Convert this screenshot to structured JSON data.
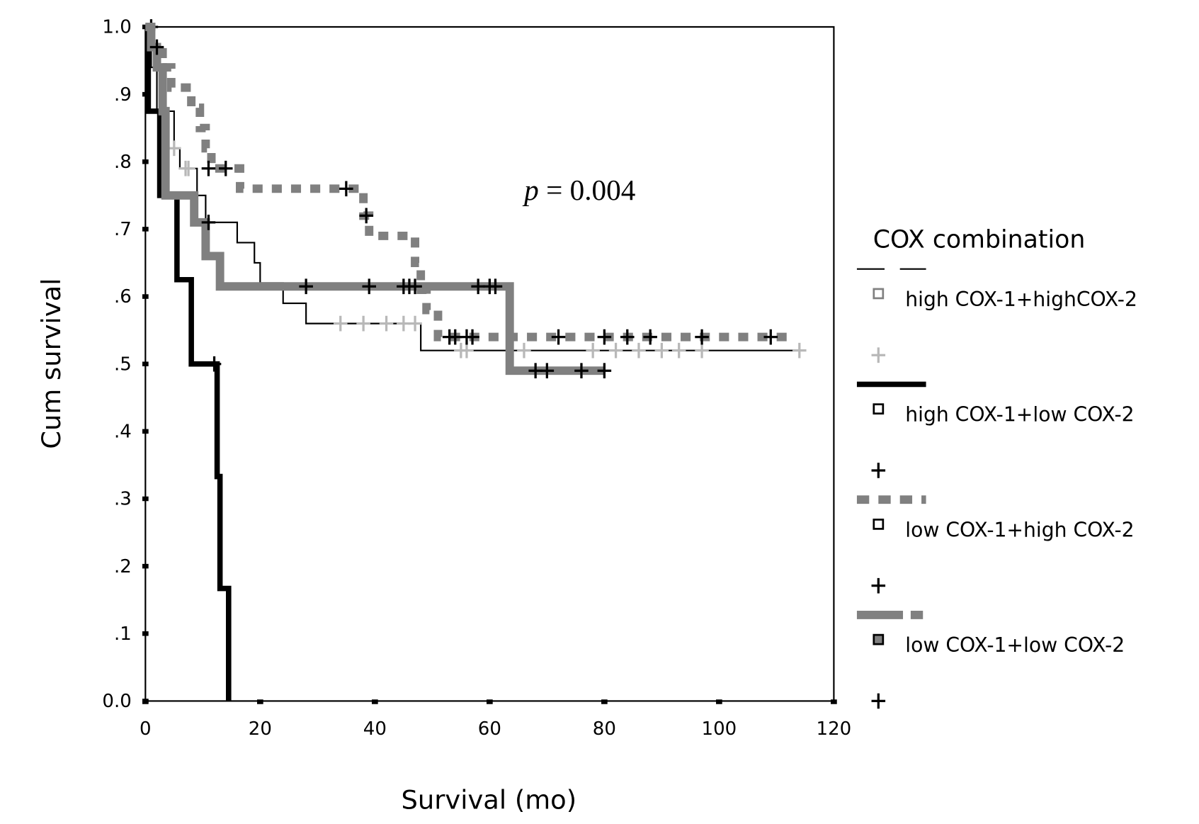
{
  "chart_data": {
    "type": "line",
    "subtype": "kaplan-meier",
    "xlabel": "Survival (mo)",
    "ylabel": "Cum survival",
    "xlim": [
      0,
      120
    ],
    "ylim": [
      0,
      1
    ],
    "x_ticks": [
      0,
      20,
      40,
      60,
      80,
      100,
      120
    ],
    "x_tick_labels": [
      "0",
      "20",
      "40",
      "60",
      "80",
      "100",
      "120"
    ],
    "y_ticks": [
      0,
      0.1,
      0.2,
      0.3,
      0.4,
      0.5,
      0.6,
      0.7,
      0.8,
      0.9,
      1.0
    ],
    "y_tick_labels": [
      "0.0",
      ".1",
      ".2",
      ".3",
      ".4",
      ".5",
      ".6",
      ".7",
      ".8",
      ".9",
      "1.0"
    ],
    "grid": false,
    "legend_title": "COX combination",
    "legend_position": "right",
    "annotation": {
      "italic": "p",
      "text": " = 0.004"
    },
    "series": [
      {
        "name": "high COX-1+highCOX-2",
        "color": "#000000",
        "censor_color": "#b8b8b8",
        "style": "thin-dashed",
        "steps": [
          [
            0,
            1.0
          ],
          [
            1,
            0.94
          ],
          [
            2,
            0.875
          ],
          [
            5,
            0.82
          ],
          [
            6,
            0.79
          ],
          [
            9,
            0.75
          ],
          [
            10.5,
            0.71
          ],
          [
            16,
            0.68
          ],
          [
            19,
            0.65
          ],
          [
            20,
            0.62
          ],
          [
            24,
            0.59
          ],
          [
            28,
            0.56
          ],
          [
            48,
            0.52
          ],
          [
            115,
            0.52
          ]
        ],
        "censored": [
          [
            5,
            0.82
          ],
          [
            7,
            0.79
          ],
          [
            7.5,
            0.79
          ],
          [
            34,
            0.56
          ],
          [
            38,
            0.56
          ],
          [
            42,
            0.56
          ],
          [
            45,
            0.56
          ],
          [
            47,
            0.56
          ],
          [
            55,
            0.52
          ],
          [
            56,
            0.52
          ],
          [
            66,
            0.52
          ],
          [
            78,
            0.52
          ],
          [
            82,
            0.52
          ],
          [
            86,
            0.52
          ],
          [
            90,
            0.52
          ],
          [
            93,
            0.52
          ],
          [
            97,
            0.52
          ],
          [
            114,
            0.52
          ]
        ]
      },
      {
        "name": "high COX-1+low COX-2",
        "color": "#000000",
        "censor_color": "#000000",
        "style": "thick-solid",
        "steps": [
          [
            0,
            1.0
          ],
          [
            0.5,
            0.875
          ],
          [
            2.5,
            0.75
          ],
          [
            5.5,
            0.625
          ],
          [
            8,
            0.5
          ],
          [
            12.5,
            0.333
          ],
          [
            13,
            0.167
          ],
          [
            14.5,
            0
          ]
        ],
        "censored": [
          [
            1,
            1.0
          ],
          [
            12,
            0.5
          ]
        ]
      },
      {
        "name": "low COX-1+high COX-2",
        "color": "#808080",
        "censor_color": "#000000",
        "style": "dotted",
        "steps": [
          [
            0,
            1.0
          ],
          [
            1,
            0.97
          ],
          [
            3,
            0.94
          ],
          [
            4.5,
            0.91
          ],
          [
            8,
            0.88
          ],
          [
            9.5,
            0.85
          ],
          [
            10.5,
            0.82
          ],
          [
            11.5,
            0.79
          ],
          [
            16.5,
            0.76
          ],
          [
            38,
            0.72
          ],
          [
            39,
            0.69
          ],
          [
            47,
            0.65
          ],
          [
            48,
            0.61
          ],
          [
            49,
            0.58
          ],
          [
            51,
            0.54
          ],
          [
            112,
            0.54
          ]
        ],
        "censored": [
          [
            11,
            0.79
          ],
          [
            14,
            0.79
          ],
          [
            35,
            0.76
          ],
          [
            38.5,
            0.72
          ],
          [
            53,
            0.54
          ],
          [
            54,
            0.54
          ],
          [
            56,
            0.54
          ],
          [
            57,
            0.54
          ],
          [
            72,
            0.54
          ],
          [
            80,
            0.54
          ],
          [
            84,
            0.54
          ],
          [
            88,
            0.54
          ],
          [
            97,
            0.54
          ],
          [
            109,
            0.54
          ]
        ]
      },
      {
        "name": "low COX-1+low COX-2",
        "color": "#808080",
        "censor_color": "#000000",
        "style": "thick-dash-dot",
        "steps": [
          [
            0,
            1.0
          ],
          [
            1,
            0.97
          ],
          [
            2,
            0.94
          ],
          [
            3,
            0.875
          ],
          [
            3.5,
            0.75
          ],
          [
            8.5,
            0.71
          ],
          [
            10.5,
            0.66
          ],
          [
            13,
            0.615
          ],
          [
            63.5,
            0.49
          ],
          [
            80,
            0.49
          ]
        ],
        "censored": [
          [
            2,
            0.97
          ],
          [
            11,
            0.71
          ],
          [
            28,
            0.615
          ],
          [
            39,
            0.615
          ],
          [
            45,
            0.615
          ],
          [
            46,
            0.615
          ],
          [
            47,
            0.615
          ],
          [
            58,
            0.615
          ],
          [
            60,
            0.615
          ],
          [
            61,
            0.615
          ],
          [
            68,
            0.49
          ],
          [
            70,
            0.49
          ],
          [
            76,
            0.49
          ],
          [
            80,
            0.49
          ]
        ]
      }
    ]
  }
}
